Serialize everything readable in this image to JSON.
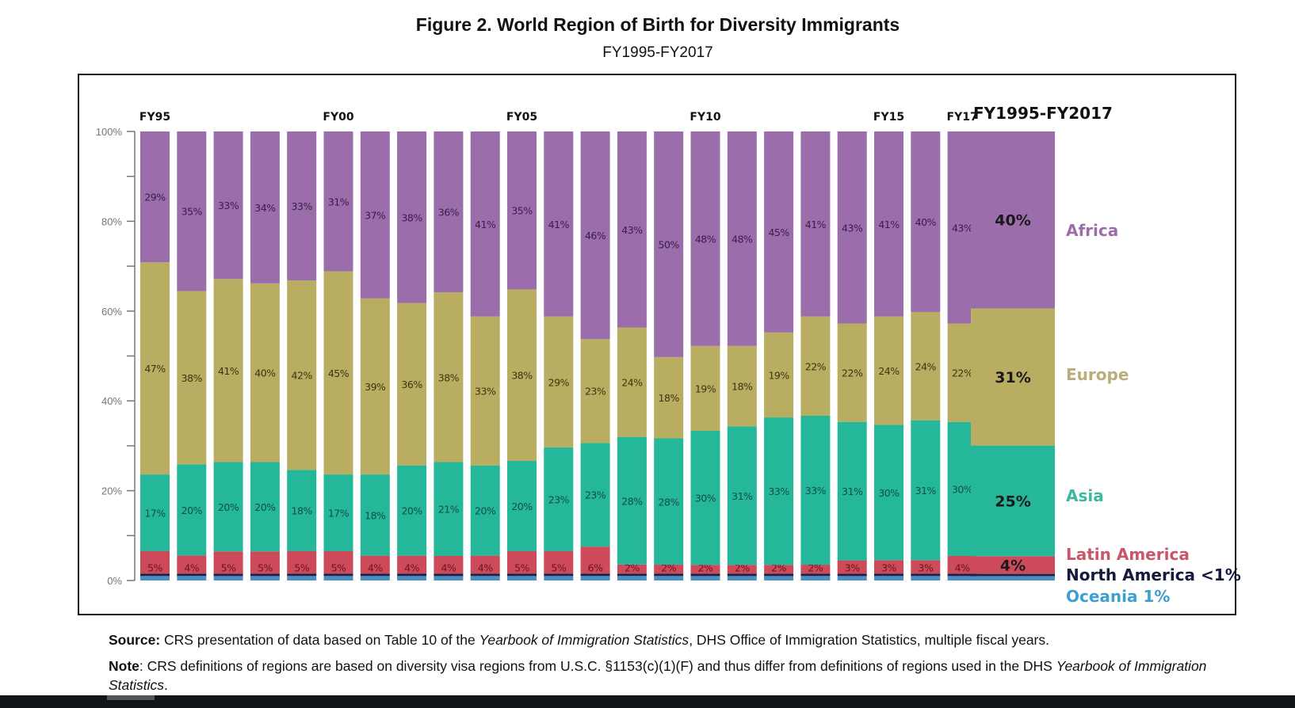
{
  "figure": {
    "title": "Figure 2. World Region of Birth for Diversity Immigrants",
    "subtitle": "FY1995-FY2017",
    "source_label": "Source:",
    "source_text_1": " CRS presentation of data based on Table 10 of the ",
    "source_italic": "Yearbook of Immigration Statistics",
    "source_text_2": ", DHS Office of Immigration Statistics, multiple fiscal years.",
    "note_label": "Note",
    "note_text_1": ": CRS definitions of regions are based on diversity visa regions from U.S.C. §1153(c)(1)(F) and thus differ from definitions of regions used in the DHS ",
    "note_italic": "Yearbook of Immigration Statistics",
    "note_text_2": "."
  },
  "chart_data": {
    "type": "bar",
    "stacked": true,
    "title": "Figure 2. World Region of Birth for Diversity Immigrants",
    "subtitle": "FY1995-FY2017",
    "xlabel": "",
    "ylabel": "",
    "ylim": [
      0,
      100
    ],
    "y_ticks": [
      "0%",
      "20%",
      "40%",
      "60%",
      "80%",
      "100%"
    ],
    "categories": [
      "FY95",
      "FY96",
      "FY97",
      "FY98",
      "FY99",
      "FY00",
      "FY01",
      "FY02",
      "FY03",
      "FY04",
      "FY05",
      "FY06",
      "FY07",
      "FY08",
      "FY09",
      "FY10",
      "FY11",
      "FY12",
      "FY13",
      "FY14",
      "FY15",
      "FY16",
      "FY17"
    ],
    "category_labels_shown": {
      "0": "FY95",
      "5": "FY00",
      "10": "FY05",
      "15": "FY10",
      "20": "FY15",
      "22": "FY17"
    },
    "series": [
      {
        "name": "Oceania",
        "color": "#4a8fbf",
        "values": [
          1,
          1,
          1,
          1,
          1,
          1,
          1,
          1,
          1,
          1,
          1,
          1,
          1,
          1,
          1,
          1,
          1,
          1,
          1,
          1,
          1,
          1,
          1
        ],
        "labels": []
      },
      {
        "name": "North America",
        "color": "#1b1f4a",
        "values": [
          0.5,
          0.5,
          0.5,
          0.5,
          0.5,
          0.5,
          0.5,
          0.5,
          0.5,
          0.5,
          0.5,
          0.5,
          0.5,
          0.5,
          0.5,
          0.5,
          0.5,
          0.5,
          0.5,
          0.5,
          0.5,
          0.5,
          0.5
        ],
        "labels": []
      },
      {
        "name": "Latin America",
        "color": "#cc4a5a",
        "values": [
          5,
          4,
          5,
          5,
          5,
          5,
          4,
          4,
          4,
          4,
          5,
          5,
          6,
          2,
          2,
          2,
          2,
          2,
          2,
          3,
          3,
          3,
          4
        ],
        "labels": [
          "5%",
          "4%",
          "5%",
          "5%",
          "5%",
          "5%",
          "4%",
          "4%",
          "4%",
          "4%",
          "5%",
          "5%",
          "6%",
          "2%",
          "2%",
          "2%",
          "2%",
          "2%",
          "2%",
          "3%",
          "3%",
          "3%",
          "4%"
        ]
      },
      {
        "name": "Asia",
        "color": "#25b79a",
        "values": [
          17,
          20,
          20,
          20,
          18,
          17,
          18,
          20,
          21,
          20,
          20,
          23,
          23,
          28,
          28,
          30,
          31,
          33,
          33,
          31,
          30,
          31,
          30
        ],
        "labels": [
          "17%",
          "20%",
          "20%",
          "20%",
          "18%",
          "17%",
          "18%",
          "20%",
          "21%",
          "20%",
          "20%",
          "23%",
          "23%",
          "28%",
          "28%",
          "30%",
          "31%",
          "33%",
          "33%",
          "31%",
          "30%",
          "31%",
          "30%"
        ]
      },
      {
        "name": "Europe",
        "color": "#b9ad62",
        "values": [
          47,
          38,
          41,
          40,
          42,
          45,
          39,
          36,
          38,
          33,
          38,
          29,
          23,
          24,
          18,
          19,
          18,
          19,
          22,
          22,
          24,
          24,
          22
        ],
        "labels": [
          "47%",
          "38%",
          "41%",
          "40%",
          "42%",
          "45%",
          "39%",
          "36%",
          "38%",
          "33%",
          "38%",
          "29%",
          "23%",
          "24%",
          "18%",
          "19%",
          "18%",
          "19%",
          "22%",
          "22%",
          "24%",
          "24%",
          "22%"
        ]
      },
      {
        "name": "Africa",
        "color": "#9b6dab",
        "values": [
          29,
          35,
          33,
          34,
          33,
          31,
          37,
          38,
          36,
          41,
          35,
          41,
          46,
          43,
          50,
          48,
          48,
          45,
          41,
          43,
          41,
          40,
          43
        ],
        "labels": [
          "29%",
          "35%",
          "33%",
          "34%",
          "33%",
          "31%",
          "37%",
          "38%",
          "36%",
          "41%",
          "35%",
          "41%",
          "46%",
          "43%",
          "50%",
          "48%",
          "48%",
          "45%",
          "41%",
          "43%",
          "41%",
          "40%",
          "43%"
        ]
      }
    ],
    "summary_bar": {
      "title": "FY1995-FY2017",
      "segments": [
        {
          "name": "Oceania",
          "value": 1,
          "label": "",
          "legend": "Oceania 1%",
          "legend_color": "#3f9fd0"
        },
        {
          "name": "North America",
          "value": 0.5,
          "label": "",
          "legend": "North America <1%",
          "legend_color": "#151a3c"
        },
        {
          "name": "Latin America",
          "value": 4,
          "label": "4%",
          "legend": "Latin America",
          "legend_color": "#c9566a"
        },
        {
          "name": "Asia",
          "value": 25,
          "label": "25%",
          "legend": "Asia",
          "legend_color": "#3cb8a0"
        },
        {
          "name": "Europe",
          "value": 31,
          "label": "31%",
          "legend": "Europe",
          "legend_color": "#b9ad7a"
        },
        {
          "name": "Africa",
          "value": 40,
          "label": "40%",
          "legend": "Africa",
          "legend_color": "#9b6dab"
        }
      ]
    },
    "legend": "right",
    "grid": false
  }
}
